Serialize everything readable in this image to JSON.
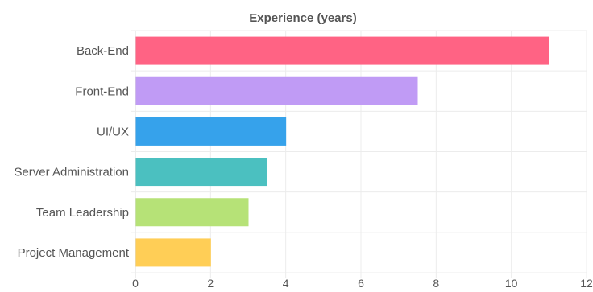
{
  "chart_data": {
    "type": "bar",
    "orientation": "horizontal",
    "title": "Experience (years)",
    "categories": [
      "Back-End",
      "Front-End",
      "UI/UX",
      "Server Administration",
      "Team Leadership",
      "Project Management"
    ],
    "values": [
      11,
      7.5,
      4,
      3.5,
      3,
      2
    ],
    "colors": [
      "#ff6384",
      "#c09bf5",
      "#36a2eb",
      "#4bc0c0",
      "#b6e277",
      "#ffce56"
    ],
    "xlim": [
      0,
      12
    ],
    "xticks": [
      "0",
      "2",
      "4",
      "6",
      "8",
      "10",
      "12"
    ],
    "xlabel": "",
    "ylabel": "",
    "grid": true,
    "legend": "none"
  }
}
